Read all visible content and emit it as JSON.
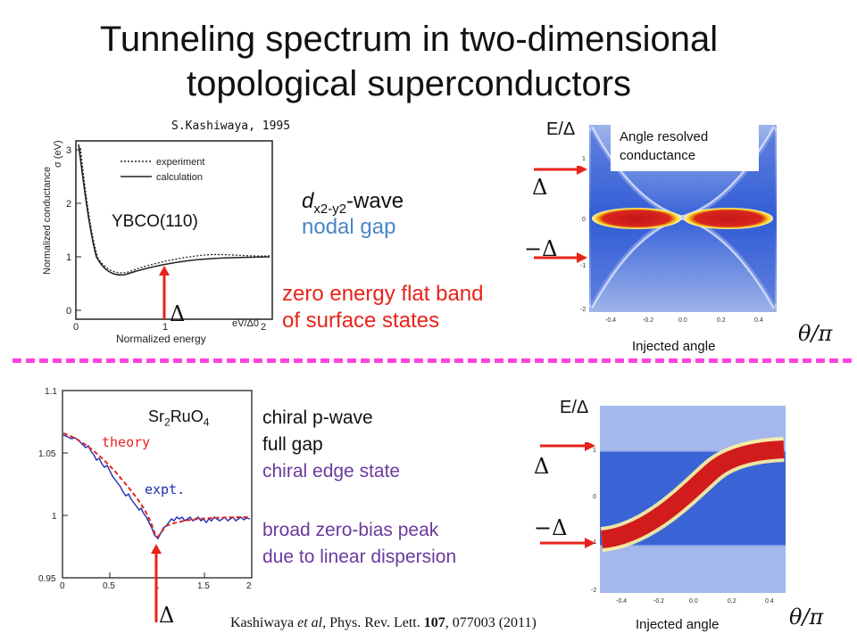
{
  "title_line1": "Tunneling spectrum in two-dimensional",
  "title_line2": "topological superconductors",
  "top": {
    "ref": "S.Kashiwaya, 1995",
    "sample": "YBCO(110)",
    "legend_experiment": "experiment",
    "legend_calculation": "calculation",
    "ylabel": "Normalized conductance",
    "ylabel_unit": "σ (eV)",
    "xlabel": "Normalized energy",
    "xlabel_right": "eV/Δ0",
    "yticks": [
      "3",
      "2",
      "1",
      "0"
    ],
    "xticks": [
      "0",
      "1",
      "2"
    ],
    "delta": "Δ",
    "wave_prefix": "d",
    "wave_sub": "x2-y2",
    "wave_suffix": "-wave",
    "gap": "nodal gap",
    "flat_band_1": "zero energy flat band",
    "flat_band_2": "of surface states",
    "map_ylabel": "E/Δ",
    "map_delta_pos": "Δ",
    "map_delta_neg": "−Δ",
    "map_box_1": "Angle resolved",
    "map_box_2": "conductance",
    "map_xlabel": "Injected angle",
    "map_xunit": "θ/π",
    "map_xticks": [
      "-0.4",
      "-0.2",
      "0.0",
      "0.2",
      "0.4"
    ],
    "map_yticks": [
      "2",
      "1",
      "0",
      "-1",
      "-2"
    ]
  },
  "bottom": {
    "sample_main": "Sr",
    "sample_sub1": "2",
    "sample_mid": "RuO",
    "sample_sub2": "4",
    "theory": "theory",
    "expt": "expt.",
    "yticks": [
      "1.1",
      "1.05",
      "1",
      "0.95"
    ],
    "xticks": [
      "0",
      "0.5",
      "1",
      "1.5",
      "2"
    ],
    "delta": "Δ",
    "line1": "chiral p-wave",
    "line2": "full gap",
    "line3": "chiral edge state",
    "line4": "broad zero-bias peak",
    "line5": "due to linear dispersion",
    "map_ylabel": "E/Δ",
    "map_delta_pos": "Δ",
    "map_delta_neg": "−Δ",
    "map_xlabel": "Injected angle",
    "map_xunit": "θ/π",
    "map_xticks": [
      "-0.4",
      "-0.2",
      "0.0",
      "0.2",
      "0.4"
    ],
    "map_yticks": [
      "2",
      "1",
      "0",
      "-1",
      "-2"
    ]
  },
  "citation_prefix": "Kashiwaya ",
  "citation_etal": "et al",
  "citation_journal": ", Phys. Rev. Lett. ",
  "citation_volume": "107",
  "citation_rest": ", 077003 (2011)",
  "colors": {
    "divider": "#ff44dd",
    "arrow": "#e8231b",
    "map_bg": "#3a64d6",
    "band": "#d21b1b"
  }
}
